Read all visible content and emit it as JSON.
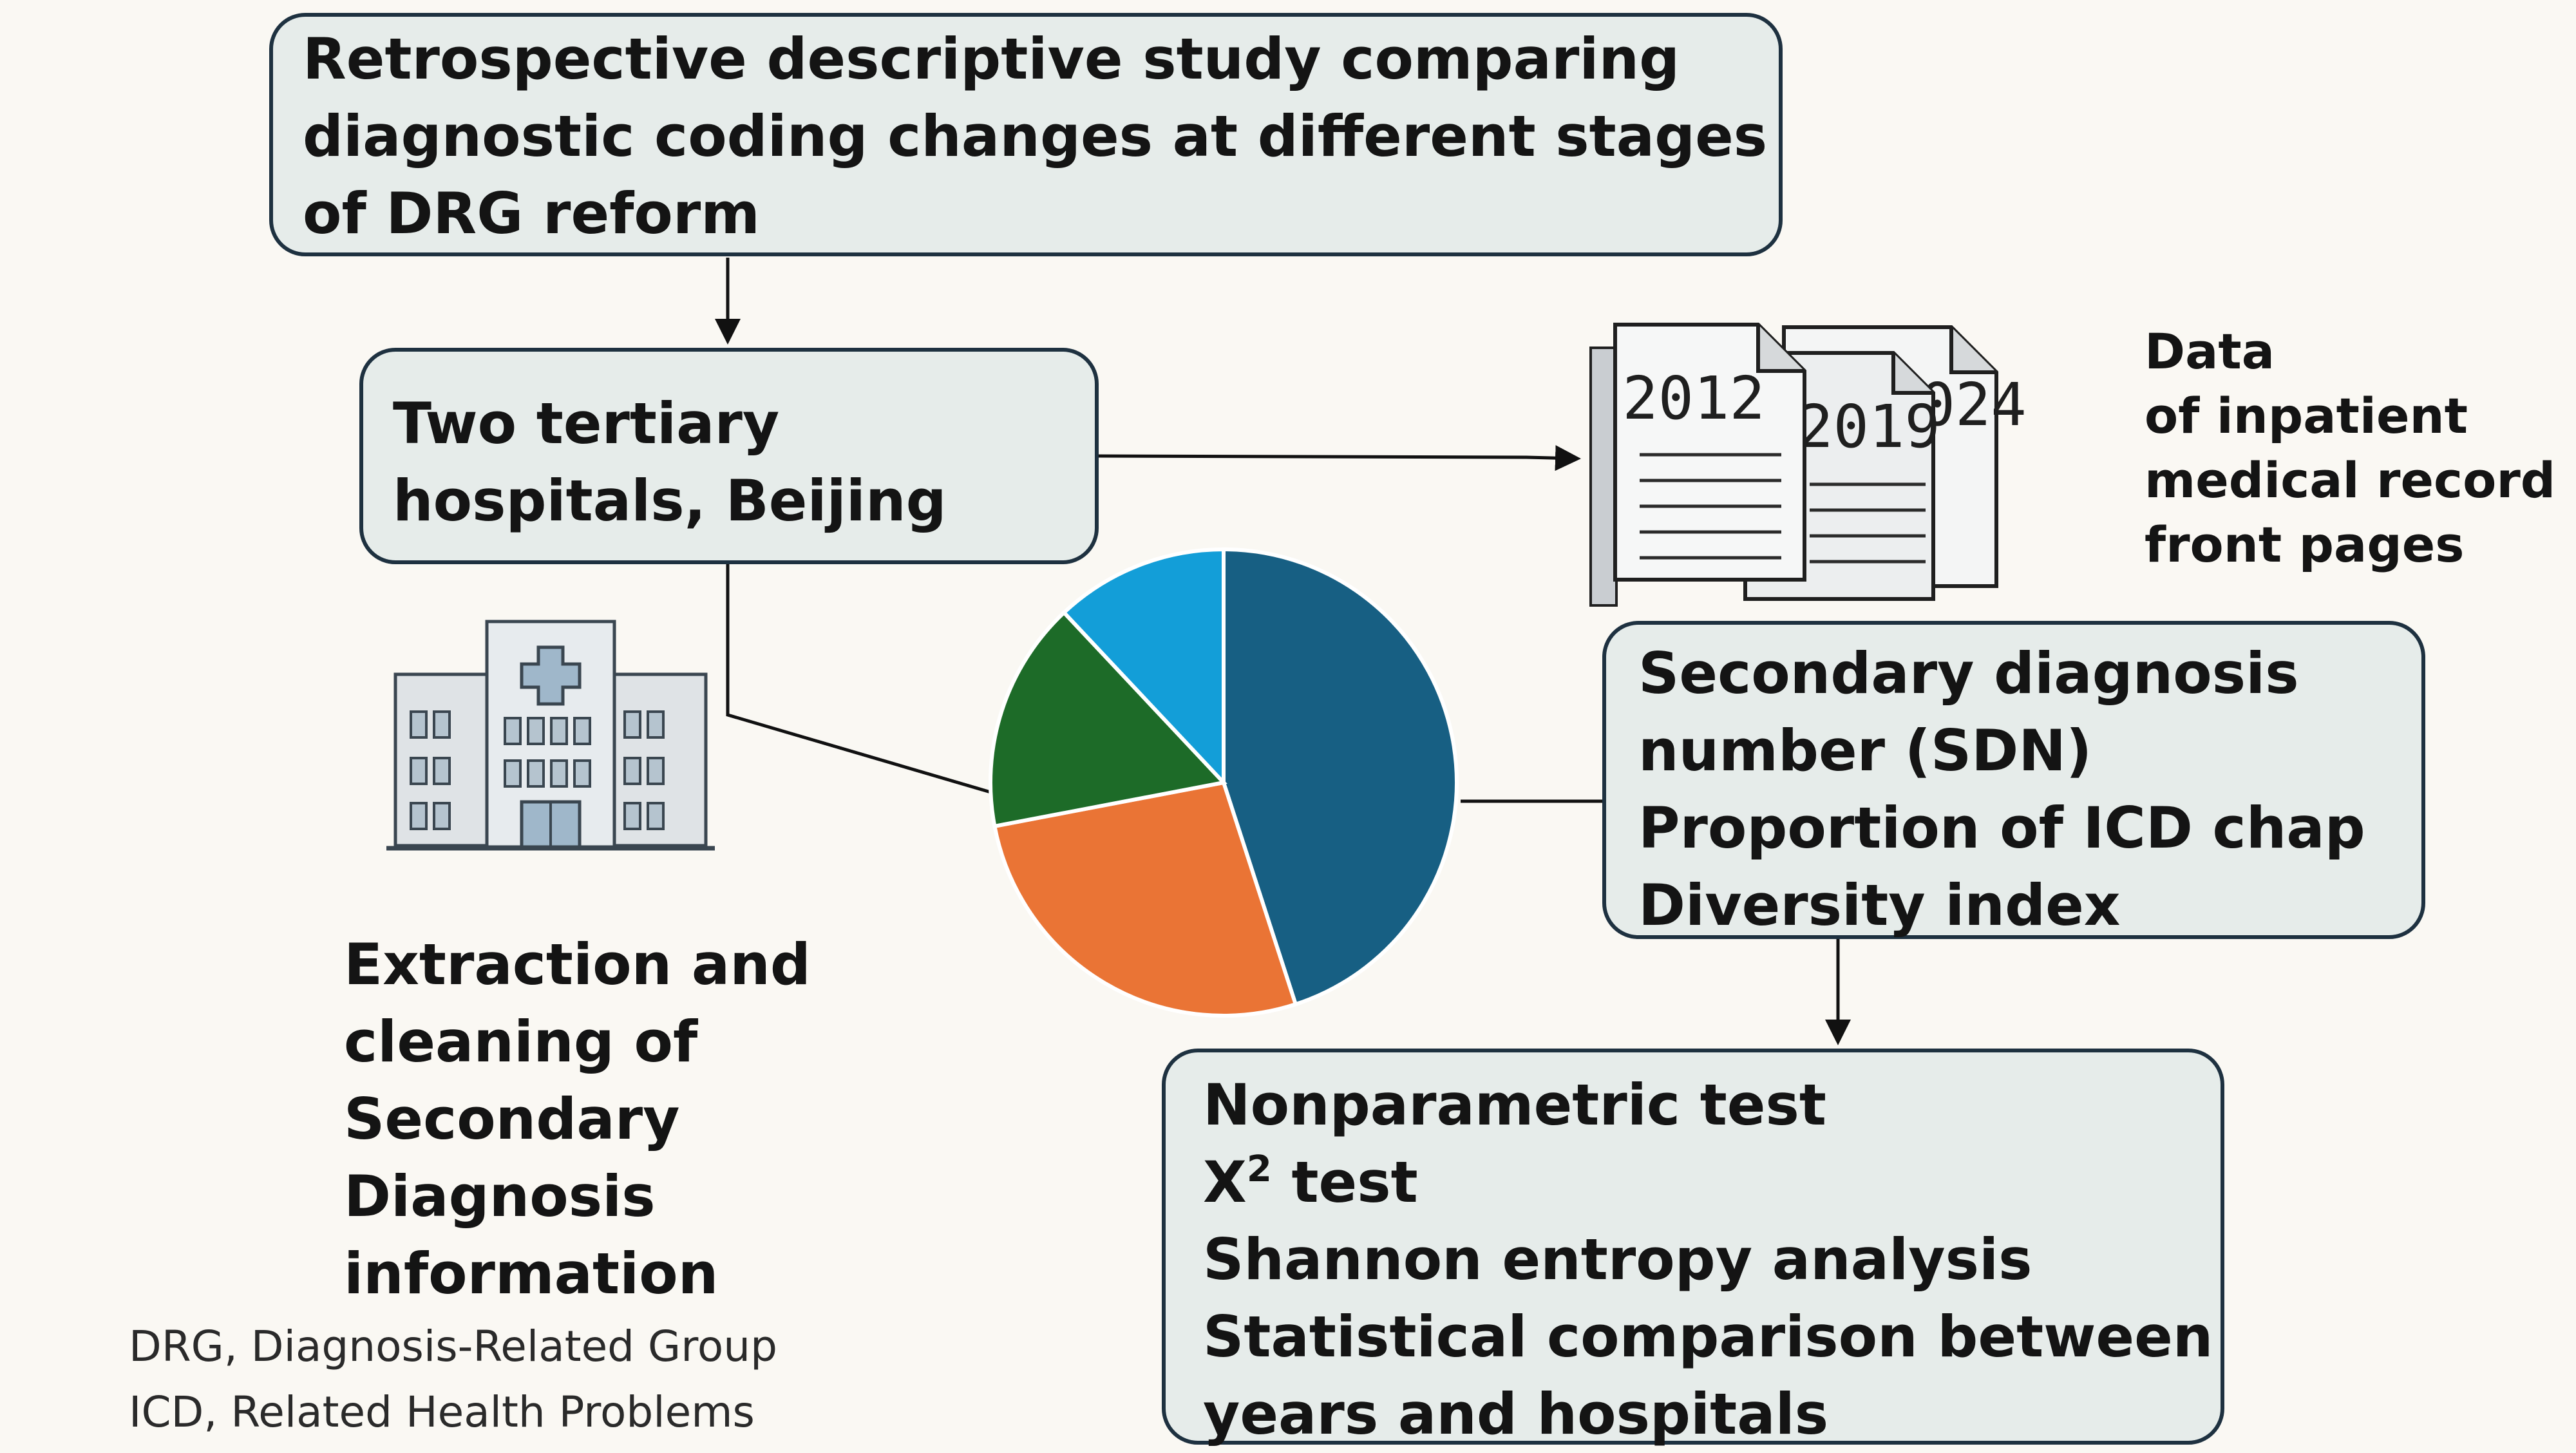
{
  "study_box": {
    "lines": [
      "Retrospective descriptive study comparing",
      "diagnostic coding changes at different stages",
      "of DRG reform"
    ]
  },
  "hospitals_box": {
    "lines": [
      "Two tertiary",
      "hospitals, Beijing"
    ]
  },
  "documents": {
    "years": [
      "2012",
      "2019",
      "2024"
    ],
    "label_lines": [
      "Data",
      "of inpatient",
      "medical record",
      "front pages"
    ]
  },
  "metrics_box": {
    "lines": [
      "Secondary diagnosis",
      "number (SDN)",
      "Proportion of ICD chap",
      "Diversity index"
    ]
  },
  "extraction": {
    "lines": [
      "Extraction and",
      "cleaning of",
      "Secondary",
      "Diagnosis",
      "information"
    ]
  },
  "tests_box": {
    "chi_base": "X",
    "chi_sup": "2",
    "chi_suffix": " test",
    "lines": [
      "Nonparametric test",
      "Shannon entropy analysis",
      "Statistical comparison between",
      "years and hospitals"
    ]
  },
  "footnotes": [
    "DRG, Diagnosis-Related Group",
    "ICD, Related Health Problems"
  ],
  "pie": {
    "shares": [
      0.45,
      0.27,
      0.16,
      0.12
    ],
    "colors": [
      "#175f83",
      "#ea7435",
      "#1d6b28",
      "#139ed8"
    ]
  },
  "icons": [
    "hospital-building-icon",
    "document-stack-icon"
  ],
  "colors": {
    "background": "#faf8f3",
    "box_fill": "#e6ecea",
    "box_border": "#1e3140",
    "text": "#141414"
  }
}
